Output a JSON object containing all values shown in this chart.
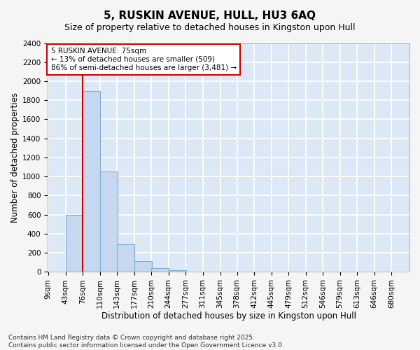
{
  "title": "5, RUSKIN AVENUE, HULL, HU3 6AQ",
  "subtitle": "Size of property relative to detached houses in Kingston upon Hull",
  "xlabel": "Distribution of detached houses by size in Kingston upon Hull",
  "ylabel": "Number of detached properties",
  "bar_color": "#c5d8f0",
  "bar_edge_color": "#7aafd4",
  "fig_bg_color": "#f5f5f5",
  "ax_bg_color": "#dce8f5",
  "grid_color": "#ffffff",
  "annotation_line_color": "#cc0000",
  "annotation_text": "5 RUSKIN AVENUE: 75sqm\n← 13% of detached houses are smaller (509)\n86% of semi-detached houses are larger (3,481) →",
  "property_bin_index": 2,
  "bin_edges": [
    9,
    43,
    76,
    110,
    143,
    177,
    210,
    244,
    277,
    311,
    345,
    378,
    412,
    445,
    479,
    512,
    546,
    579,
    613,
    646,
    680
  ],
  "bin_labels": [
    "9sqm",
    "43sqm",
    "76sqm",
    "110sqm",
    "143sqm",
    "177sqm",
    "210sqm",
    "244sqm",
    "277sqm",
    "311sqm",
    "345sqm",
    "378sqm",
    "412sqm",
    "445sqm",
    "479sqm",
    "512sqm",
    "546sqm",
    "579sqm",
    "613sqm",
    "646sqm",
    "680sqm"
  ],
  "counts": [
    0,
    600,
    1900,
    1050,
    290,
    110,
    40,
    20,
    0,
    0,
    0,
    0,
    0,
    0,
    0,
    0,
    0,
    0,
    0,
    0
  ],
  "ylim": [
    0,
    2400
  ],
  "yticks": [
    0,
    200,
    400,
    600,
    800,
    1000,
    1200,
    1400,
    1600,
    1800,
    2000,
    2200,
    2400
  ],
  "footer": "Contains HM Land Registry data © Crown copyright and database right 2025.\nContains public sector information licensed under the Open Government Licence v3.0.",
  "title_fontsize": 11,
  "subtitle_fontsize": 9,
  "xlabel_fontsize": 8.5,
  "ylabel_fontsize": 8.5,
  "tick_fontsize": 7.5,
  "footer_fontsize": 6.5
}
